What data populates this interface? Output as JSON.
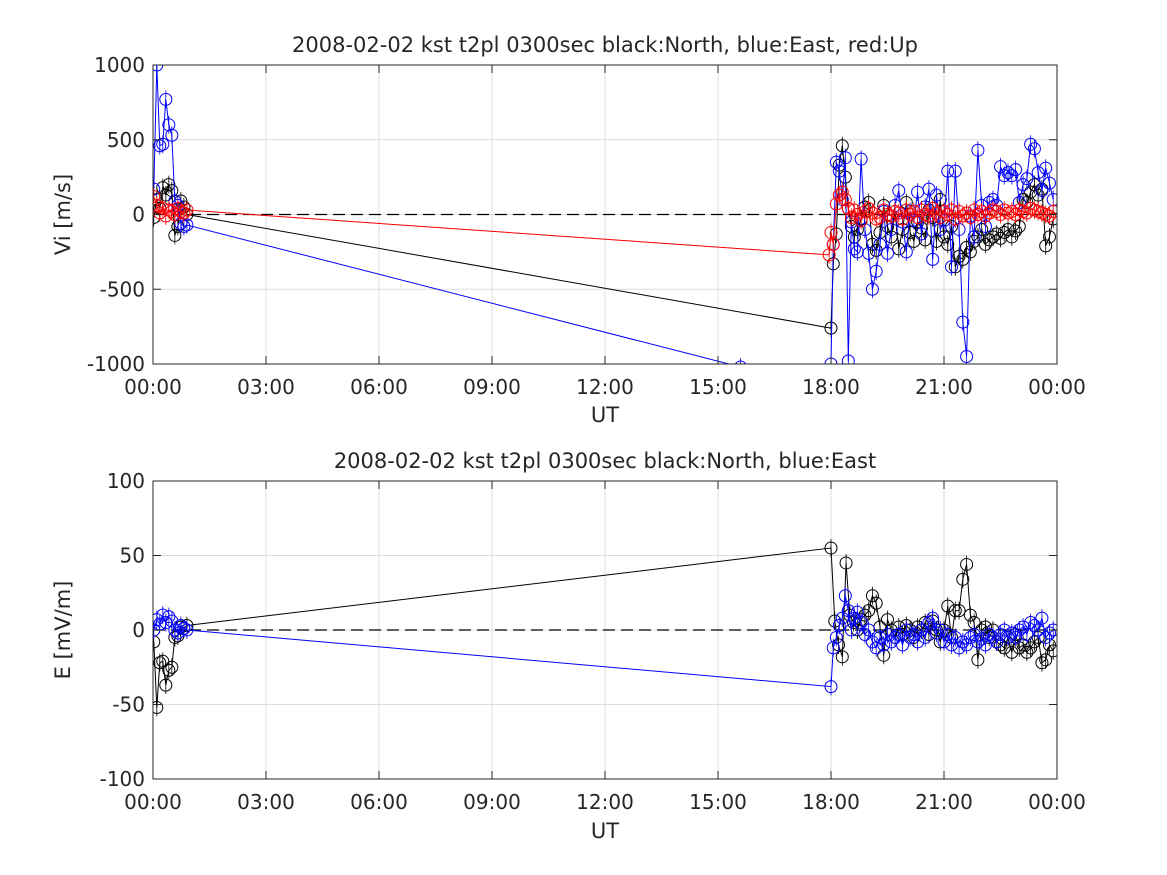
{
  "chart_data": [
    {
      "type": "line",
      "title": "2008-02-02 kst t2pl 0300sec black:North, blue:East, red:Up",
      "xlabel": "UT",
      "ylabel": "Vi [m/s]",
      "xlim": [
        0,
        24
      ],
      "ylim": [
        -1000,
        1000
      ],
      "xticks": [
        0,
        3,
        6,
        9,
        12,
        15,
        18,
        21,
        24
      ],
      "xtick_labels": [
        "00:00",
        "03:00",
        "06:00",
        "09:00",
        "12:00",
        "15:00",
        "18:00",
        "21:00",
        "00:00"
      ],
      "yticks": [
        -1000,
        -500,
        0,
        500,
        1000
      ],
      "ytick_labels": [
        "-1000",
        "-500",
        "0",
        "500",
        "1000"
      ],
      "grid": true,
      "zero_line": true,
      "series": [
        {
          "color": "#000000",
          "x": [
            0.02,
            0.1,
            0.18,
            0.26,
            0.34,
            0.42,
            0.5,
            0.58,
            0.66,
            0.74,
            0.82,
            0.9,
            18.0,
            18.06,
            18.14,
            18.22,
            18.3,
            18.38,
            18.46,
            18.54,
            18.62,
            18.7,
            18.8,
            18.9,
            19.0,
            19.1,
            19.2,
            19.3,
            19.4,
            19.5,
            19.6,
            19.7,
            19.8,
            19.9,
            20.0,
            20.1,
            20.2,
            20.3,
            20.4,
            20.5,
            20.6,
            20.7,
            20.8,
            20.9,
            21.0,
            21.1,
            21.2,
            21.3,
            21.4,
            21.5,
            21.6,
            21.7,
            21.8,
            21.9,
            22.0,
            22.1,
            22.2,
            22.3,
            22.4,
            22.5,
            22.6,
            22.7,
            22.8,
            22.9,
            23.0,
            23.1,
            23.2,
            23.3,
            23.4,
            23.5,
            23.6,
            23.7,
            23.8,
            23.9
          ],
          "y": [
            -20,
            100,
            40,
            180,
            130,
            200,
            160,
            -140,
            -80,
            90,
            50,
            0,
            -760,
            -330,
            -130,
            330,
            460,
            250,
            40,
            -80,
            -150,
            -100,
            -30,
            50,
            80,
            -200,
            -240,
            -120,
            60,
            -80,
            -150,
            20,
            -230,
            -100,
            80,
            -120,
            -180,
            -50,
            -90,
            -170,
            30,
            -20,
            -180,
            100,
            -150,
            -200,
            -80,
            -350,
            -280,
            -300,
            -220,
            -250,
            -180,
            -150,
            -100,
            -200,
            -170,
            -150,
            -130,
            -160,
            -120,
            -100,
            -150,
            -110,
            -80,
            100,
            80,
            150,
            200,
            130,
            170,
            -210,
            -150,
            -30
          ]
        },
        {
          "color": "#0000ff",
          "x": [
            0.02,
            0.1,
            0.18,
            0.26,
            0.34,
            0.42,
            0.5,
            0.58,
            0.66,
            0.74,
            0.82,
            0.9,
            15.6,
            18.0,
            18.06,
            18.14,
            18.22,
            18.3,
            18.38,
            18.46,
            18.54,
            18.62,
            18.7,
            18.8,
            18.9,
            19.0,
            19.1,
            19.2,
            19.3,
            19.4,
            19.5,
            19.6,
            19.7,
            19.8,
            19.9,
            20.0,
            20.1,
            20.2,
            20.3,
            20.4,
            20.5,
            20.6,
            20.7,
            20.8,
            20.9,
            21.0,
            21.1,
            21.2,
            21.3,
            21.4,
            21.5,
            21.6,
            21.7,
            21.8,
            21.9,
            22.0,
            22.1,
            22.2,
            22.3,
            22.4,
            22.5,
            22.6,
            22.7,
            22.8,
            22.9,
            23.0,
            23.1,
            23.2,
            23.3,
            23.4,
            23.5,
            23.6,
            23.7,
            23.8,
            23.9
          ],
          "y": [
            170,
            1000,
            460,
            470,
            770,
            600,
            530,
            90,
            60,
            -60,
            -80,
            -70,
            -1020,
            -1000,
            -200,
            350,
            290,
            100,
            380,
            -980,
            -50,
            -230,
            -250,
            370,
            -100,
            -260,
            -500,
            -380,
            -200,
            20,
            -260,
            -100,
            60,
            160,
            -50,
            -250,
            20,
            -40,
            150,
            -130,
            50,
            170,
            -300,
            130,
            -100,
            -40,
            290,
            -350,
            290,
            -100,
            -720,
            -950,
            -10,
            -150,
            430,
            60,
            -80,
            80,
            100,
            60,
            320,
            260,
            280,
            260,
            300,
            80,
            200,
            240,
            470,
            440,
            280,
            160,
            310,
            210,
            100
          ]
        },
        {
          "color": "#ff0000",
          "x": [
            0.02,
            0.1,
            0.18,
            0.26,
            0.34,
            0.42,
            0.5,
            0.58,
            0.66,
            0.74,
            0.82,
            0.9,
            17.95,
            18.0,
            18.06,
            18.14,
            18.22,
            18.3,
            18.38,
            18.46,
            18.54,
            18.62,
            18.7,
            18.8,
            18.9,
            19.0,
            19.1,
            19.2,
            19.3,
            19.4,
            19.5,
            19.6,
            19.7,
            19.8,
            19.9,
            20.0,
            20.1,
            20.2,
            20.3,
            20.4,
            20.5,
            20.6,
            20.7,
            20.8,
            20.9,
            21.0,
            21.1,
            21.2,
            21.3,
            21.4,
            21.5,
            21.6,
            21.7,
            21.8,
            21.9,
            22.0,
            22.1,
            22.2,
            22.3,
            22.4,
            22.5,
            22.6,
            22.7,
            22.8,
            22.9,
            23.0,
            23.1,
            23.2,
            23.3,
            23.4,
            23.5,
            23.6,
            23.7,
            23.8,
            23.9
          ],
          "y": [
            120,
            60,
            10,
            40,
            -10,
            30,
            20,
            0,
            40,
            20,
            10,
            30,
            -270,
            -120,
            -200,
            70,
            130,
            150,
            100,
            40,
            -20,
            30,
            0,
            -40,
            20,
            40,
            10,
            -30,
            -20,
            30,
            0,
            -10,
            20,
            10,
            -30,
            30,
            0,
            20,
            -20,
            30,
            0,
            -10,
            40,
            10,
            -20,
            20,
            0,
            30,
            -30,
            20,
            -10,
            10,
            -20,
            30,
            0,
            20,
            -10,
            10,
            30,
            20,
            0,
            30,
            10,
            20,
            0,
            30,
            20,
            10,
            40,
            30,
            20,
            10,
            0,
            -10,
            20
          ]
        }
      ]
    },
    {
      "type": "line",
      "title": "2008-02-02 kst t2pl 0300sec black:North, blue:East",
      "xlabel": "UT",
      "ylabel": "E [mV/m]",
      "xlim": [
        0,
        24
      ],
      "ylim": [
        -100,
        100
      ],
      "xticks": [
        0,
        3,
        6,
        9,
        12,
        15,
        18,
        21,
        24
      ],
      "xtick_labels": [
        "00:00",
        "03:00",
        "06:00",
        "09:00",
        "12:00",
        "15:00",
        "18:00",
        "21:00",
        "00:00"
      ],
      "yticks": [
        -100,
        -50,
        0,
        50,
        100
      ],
      "ytick_labels": [
        "-100",
        "-50",
        "0",
        "50",
        "100"
      ],
      "grid": true,
      "zero_line": true,
      "series": [
        {
          "color": "#000000",
          "x": [
            0.02,
            0.1,
            0.18,
            0.26,
            0.34,
            0.42,
            0.5,
            0.58,
            0.66,
            0.74,
            0.82,
            0.9,
            18.0,
            18.1,
            18.2,
            18.3,
            18.4,
            18.5,
            18.6,
            18.7,
            18.8,
            18.9,
            19.0,
            19.1,
            19.2,
            19.3,
            19.4,
            19.5,
            19.6,
            19.7,
            19.8,
            19.9,
            20.0,
            20.1,
            20.2,
            20.3,
            20.4,
            20.5,
            20.6,
            20.7,
            20.8,
            20.9,
            21.0,
            21.1,
            21.2,
            21.3,
            21.4,
            21.5,
            21.6,
            21.7,
            21.8,
            21.9,
            22.0,
            22.1,
            22.2,
            22.3,
            22.4,
            22.5,
            22.6,
            22.7,
            22.8,
            22.9,
            23.0,
            23.1,
            23.2,
            23.3,
            23.4,
            23.5,
            23.6,
            23.7,
            23.8,
            23.9
          ],
          "y": [
            -8,
            -52,
            -22,
            -21,
            -37,
            -27,
            -25,
            -5,
            -4,
            2,
            1,
            3,
            55,
            6,
            -10,
            -18,
            45,
            10,
            5,
            0,
            7,
            10,
            13,
            23,
            18,
            2,
            -17,
            7,
            0,
            -5,
            2,
            -3,
            3,
            0,
            -5,
            2,
            0,
            5,
            -3,
            6,
            0,
            -8,
            0,
            16,
            -5,
            13,
            13,
            34,
            44,
            10,
            5,
            -20,
            0,
            2,
            -5,
            0,
            -8,
            -10,
            -12,
            -5,
            -15,
            -3,
            -12,
            -10,
            -15,
            -12,
            -8,
            -5,
            -22,
            -20,
            -10,
            -14
          ]
        },
        {
          "color": "#0000ff",
          "x": [
            0.02,
            0.1,
            0.18,
            0.26,
            0.34,
            0.42,
            0.5,
            0.58,
            0.66,
            0.74,
            0.82,
            0.9,
            18.0,
            18.06,
            18.14,
            18.22,
            18.3,
            18.38,
            18.46,
            18.54,
            18.62,
            18.7,
            18.8,
            18.9,
            19.0,
            19.1,
            19.2,
            19.3,
            19.4,
            19.5,
            19.6,
            19.7,
            19.8,
            19.9,
            20.0,
            20.1,
            20.2,
            20.3,
            20.4,
            20.5,
            20.6,
            20.7,
            20.8,
            20.9,
            21.0,
            21.1,
            21.2,
            21.3,
            21.4,
            21.5,
            21.6,
            21.7,
            21.8,
            21.9,
            22.0,
            22.1,
            22.2,
            22.3,
            22.4,
            22.5,
            22.6,
            22.7,
            22.8,
            22.9,
            23.0,
            23.1,
            23.2,
            23.3,
            23.4,
            23.5,
            23.6,
            23.7,
            23.8,
            23.9
          ],
          "y": [
            0,
            7,
            4,
            10,
            5,
            9,
            6,
            0,
            -2,
            3,
            1,
            0,
            -38,
            -12,
            -5,
            3,
            8,
            23,
            13,
            0,
            8,
            12,
            5,
            -3,
            0,
            -8,
            -12,
            -5,
            -10,
            -3,
            -8,
            -5,
            -3,
            -10,
            0,
            -5,
            -3,
            -8,
            0,
            -5,
            5,
            8,
            -2,
            0,
            -8,
            -3,
            -10,
            -5,
            -12,
            -8,
            -10,
            -5,
            -3,
            -8,
            -6,
            -10,
            -3,
            -5,
            -8,
            -3,
            0,
            -5,
            -2,
            -5,
            0,
            2,
            -3,
            5,
            3,
            0,
            8,
            -5,
            -2,
            0
          ]
        }
      ]
    }
  ]
}
